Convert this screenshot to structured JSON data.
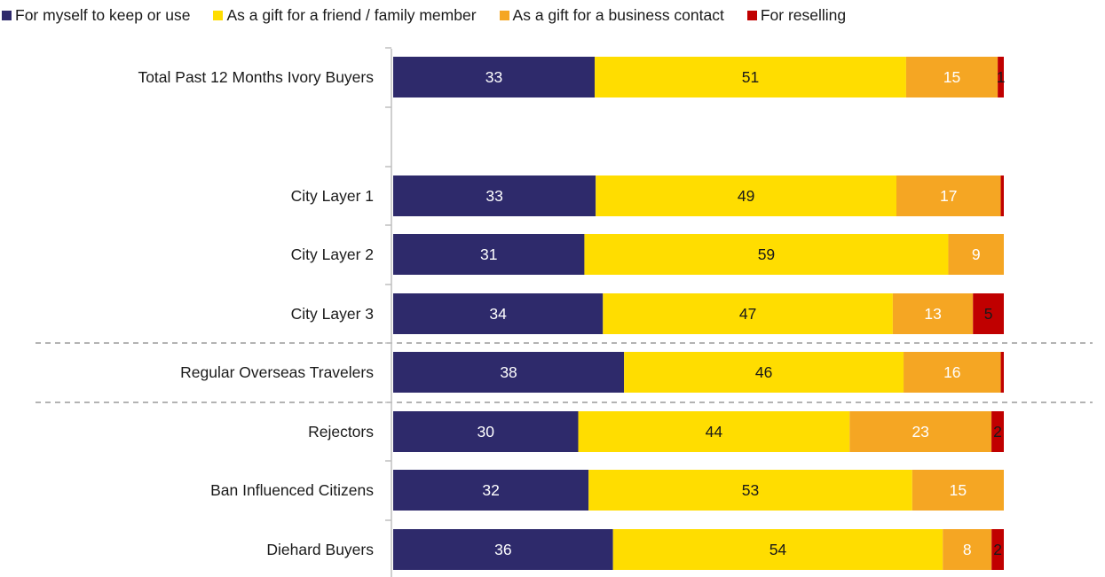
{
  "chart_data": {
    "type": "bar",
    "orientation": "horizontal",
    "stacked": true,
    "categories": [
      "Total Past 12 Months Ivory Buyers",
      "City Layer 1",
      "City Layer 2",
      "City Layer 3",
      "Regular Overseas Travelers",
      "Rejectors",
      "Ban Influenced Citizens",
      "Diehard Buyers"
    ],
    "series": [
      {
        "name": "For myself to keep or use",
        "color": "#2E2A6B",
        "values": [
          33,
          33,
          31,
          34,
          38,
          30,
          32,
          36
        ],
        "labels": [
          "33",
          "33",
          "31",
          "34",
          "38",
          "30",
          "32",
          "36"
        ]
      },
      {
        "name": "As a gift for a friend / family member",
        "color": "#FFDD00",
        "values": [
          51,
          49,
          59,
          47,
          46,
          44,
          53,
          54
        ],
        "labels": [
          "51",
          "49",
          "59",
          "47",
          "46",
          "44",
          "53",
          "54"
        ]
      },
      {
        "name": "As a gift for a business contact",
        "color": "#F5A623",
        "values": [
          15,
          17,
          9,
          13,
          16,
          23,
          15,
          8
        ],
        "labels": [
          "15",
          "17",
          "9",
          "13",
          "16",
          "23",
          "15",
          "8"
        ]
      },
      {
        "name": "For reselling",
        "color": "#C00000",
        "values": [
          1,
          0.5,
          0,
          5,
          0.5,
          2,
          0,
          2
        ],
        "labels": [
          "1",
          "",
          "",
          "5",
          "",
          "2",
          "",
          "2"
        ]
      }
    ],
    "legend_position": "top",
    "grid": false
  }
}
